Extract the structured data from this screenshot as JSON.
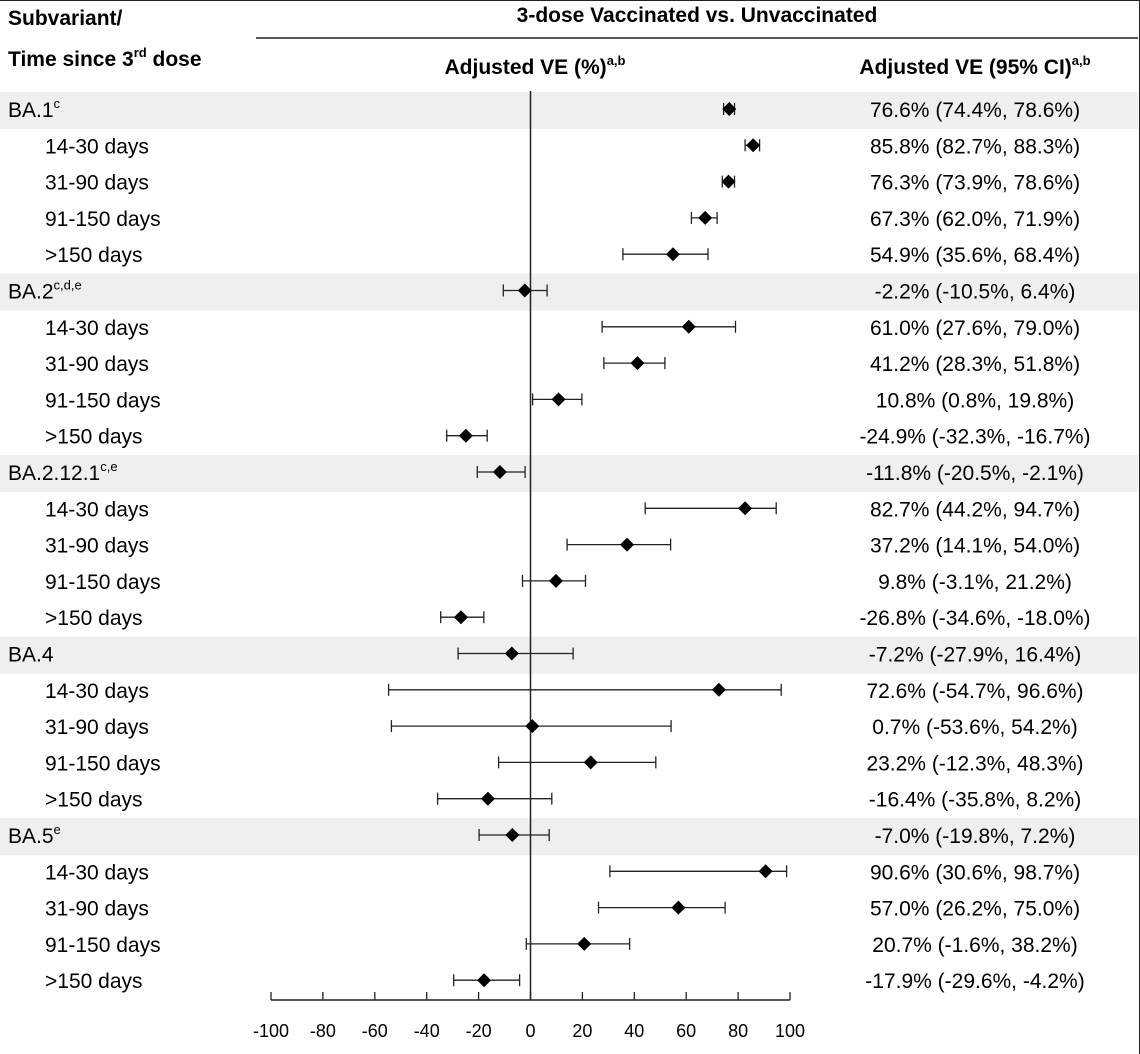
{
  "header": {
    "col1_line1": "Subvariant/",
    "col1_line2_prefix": "Time since 3",
    "col1_line2_sup": "rd",
    "col1_line2_suffix": " dose",
    "comparison": "3-dose Vaccinated vs. Unvaccinated",
    "ve_col": "Adjusted VE (%)",
    "ve_col_sup": "a,b",
    "ci_col": "Adjusted VE (95% CI)",
    "ci_col_sup": "a,b"
  },
  "chart_data": {
    "type": "forest",
    "xlim": [
      -100,
      100
    ],
    "xticks": [
      "-100",
      "-80",
      "-60",
      "-40",
      "-20",
      "0",
      "20",
      "40",
      "60",
      "80",
      "100"
    ],
    "reference_line": 0,
    "groups": [
      {
        "label": "BA.1",
        "sup": "c",
        "ve": 76.6,
        "lo": 74.4,
        "hi": 78.6,
        "text": "76.6% (74.4%, 78.6%)",
        "rows": [
          {
            "label": "14-30 days",
            "ve": 85.8,
            "lo": 82.7,
            "hi": 88.3,
            "text": "85.8% (82.7%, 88.3%)"
          },
          {
            "label": "31-90 days",
            "ve": 76.3,
            "lo": 73.9,
            "hi": 78.6,
            "text": "76.3% (73.9%, 78.6%)"
          },
          {
            "label": "91-150 days",
            "ve": 67.3,
            "lo": 62.0,
            "hi": 71.9,
            "text": "67.3% (62.0%, 71.9%)"
          },
          {
            "label": ">150 days",
            "ve": 54.9,
            "lo": 35.6,
            "hi": 68.4,
            "text": "54.9% (35.6%, 68.4%)"
          }
        ]
      },
      {
        "label": "BA.2",
        "sup": "c,d,e",
        "ve": -2.2,
        "lo": -10.5,
        "hi": 6.4,
        "text": "-2.2% (-10.5%, 6.4%)",
        "rows": [
          {
            "label": "14-30 days",
            "ve": 61.0,
            "lo": 27.6,
            "hi": 79.0,
            "text": "61.0% (27.6%, 79.0%)"
          },
          {
            "label": "31-90 days",
            "ve": 41.2,
            "lo": 28.3,
            "hi": 51.8,
            "text": "41.2% (28.3%, 51.8%)"
          },
          {
            "label": "91-150 days",
            "ve": 10.8,
            "lo": 0.8,
            "hi": 19.8,
            "text": "10.8% (0.8%, 19.8%)"
          },
          {
            "label": ">150 days",
            "ve": -24.9,
            "lo": -32.3,
            "hi": -16.7,
            "text": "-24.9% (-32.3%, -16.7%)"
          }
        ]
      },
      {
        "label": "BA.2.12.1",
        "sup": "c,e",
        "ve": -11.8,
        "lo": -20.5,
        "hi": -2.1,
        "text": "-11.8% (-20.5%, -2.1%)",
        "rows": [
          {
            "label": "14-30 days",
            "ve": 82.7,
            "lo": 44.2,
            "hi": 94.7,
            "text": "82.7% (44.2%, 94.7%)"
          },
          {
            "label": "31-90 days",
            "ve": 37.2,
            "lo": 14.1,
            "hi": 54.0,
            "text": "37.2% (14.1%, 54.0%)"
          },
          {
            "label": "91-150 days",
            "ve": 9.8,
            "lo": -3.1,
            "hi": 21.2,
            "text": "9.8% (-3.1%, 21.2%)"
          },
          {
            "label": ">150 days",
            "ve": -26.8,
            "lo": -34.6,
            "hi": -18.0,
            "text": "-26.8% (-34.6%, -18.0%)"
          }
        ]
      },
      {
        "label": "BA.4",
        "sup": "",
        "ve": -7.2,
        "lo": -27.9,
        "hi": 16.4,
        "text": "-7.2% (-27.9%, 16.4%)",
        "rows": [
          {
            "label": "14-30 days",
            "ve": 72.6,
            "lo": -54.7,
            "hi": 96.6,
            "text": "72.6% (-54.7%, 96.6%)"
          },
          {
            "label": "31-90 days",
            "ve": 0.7,
            "lo": -53.6,
            "hi": 54.2,
            "text": "0.7% (-53.6%, 54.2%)"
          },
          {
            "label": "91-150 days",
            "ve": 23.2,
            "lo": -12.3,
            "hi": 48.3,
            "text": "23.2% (-12.3%, 48.3%)"
          },
          {
            "label": ">150 days",
            "ve": -16.4,
            "lo": -35.8,
            "hi": 8.2,
            "text": "-16.4% (-35.8%, 8.2%)"
          }
        ]
      },
      {
        "label": "BA.5",
        "sup": "e",
        "ve": -7.0,
        "lo": -19.8,
        "hi": 7.2,
        "text": "-7.0% (-19.8%, 7.2%)",
        "rows": [
          {
            "label": "14-30 days",
            "ve": 90.6,
            "lo": 30.6,
            "hi": 98.7,
            "text": "90.6% (30.6%, 98.7%)"
          },
          {
            "label": "31-90 days",
            "ve": 57.0,
            "lo": 26.2,
            "hi": 75.0,
            "text": "57.0% (26.2%, 75.0%)"
          },
          {
            "label": "91-150 days",
            "ve": 20.7,
            "lo": -1.6,
            "hi": 38.2,
            "text": "20.7% (-1.6%, 38.2%)"
          },
          {
            "label": ">150 days",
            "ve": -17.9,
            "lo": -29.6,
            "hi": -4.2,
            "text": "-17.9% (-29.6%, -4.2%)"
          }
        ]
      }
    ]
  },
  "colors": {
    "group_band": "#efefef",
    "marker": "#000000",
    "line": "#222222"
  }
}
